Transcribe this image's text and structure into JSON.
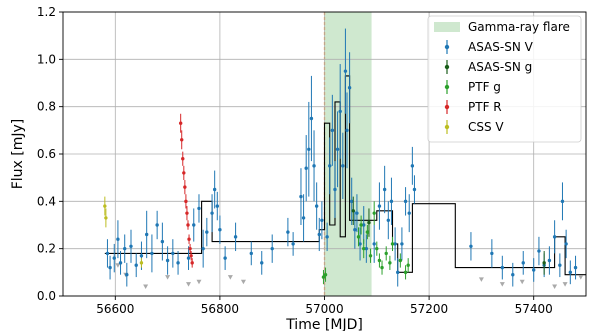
{
  "chart_data": {
    "type": "scatter",
    "xlabel": "Time [MJD]",
    "ylabel": "Flux [mJy]",
    "xlim": [
      56500,
      57500
    ],
    "ylim": [
      0.0,
      1.2
    ],
    "xticks": [
      56600,
      56800,
      57000,
      57200,
      57400
    ],
    "xtick_labels": [
      "56600",
      "56800",
      "57000",
      "57200",
      "57400"
    ],
    "yticks": [
      0.0,
      0.2,
      0.4,
      0.6,
      0.8,
      1.0,
      1.2
    ],
    "ytick_labels": [
      "0.0",
      "0.2",
      "0.4",
      "0.6",
      "0.8",
      "1.0",
      "1.2"
    ],
    "grid": true,
    "legend_position": "top-right",
    "flare_span": {
      "name": "Gamma-ray flare",
      "x": [
        57000,
        57090
      ],
      "color": "#cfe8cf"
    },
    "flare_line_x": 57000,
    "legend": [
      {
        "name": "Gamma-ray flare",
        "kind": "patch",
        "color": "#cfe8cf"
      },
      {
        "name": "ASAS-SN V",
        "kind": "errorbar",
        "color": "#1f77b4"
      },
      {
        "name": "ASAS-SN g",
        "kind": "errorbar",
        "color": "#1a5e1a"
      },
      {
        "name": "PTF g",
        "kind": "errorbar",
        "color": "#2ca02c"
      },
      {
        "name": "PTF R",
        "kind": "errorbar",
        "color": "#d62728"
      },
      {
        "name": "CSS V",
        "kind": "errorbar",
        "color": "#bcbd22"
      }
    ],
    "series": [
      {
        "name": "ASAS-SN V",
        "color": "#1f77b4",
        "points": [
          [
            56585,
            0.18,
            0.06
          ],
          [
            56590,
            0.12,
            0.05
          ],
          [
            56598,
            0.16,
            0.06
          ],
          [
            56605,
            0.24,
            0.08
          ],
          [
            56610,
            0.14,
            0.05
          ],
          [
            56618,
            0.2,
            0.06
          ],
          [
            56622,
            0.09,
            0.05
          ],
          [
            56630,
            0.21,
            0.07
          ],
          [
            56640,
            0.13,
            0.05
          ],
          [
            56650,
            0.17,
            0.06
          ],
          [
            56660,
            0.26,
            0.1
          ],
          [
            56670,
            0.18,
            0.08
          ],
          [
            56680,
            0.3,
            0.06
          ],
          [
            56690,
            0.23,
            0.08
          ],
          [
            56700,
            0.15,
            0.06
          ],
          [
            56710,
            0.18,
            0.06
          ],
          [
            56720,
            0.14,
            0.05
          ],
          [
            56740,
            0.16,
            0.05
          ],
          [
            56750,
            0.3,
            0.07
          ],
          [
            56760,
            0.37,
            0.06
          ],
          [
            56768,
            0.2,
            0.08
          ],
          [
            56775,
            0.27,
            0.06
          ],
          [
            56785,
            0.35,
            0.08
          ],
          [
            56790,
            0.45,
            0.08
          ],
          [
            56795,
            0.38,
            0.06
          ],
          [
            56800,
            0.28,
            0.06
          ],
          [
            56810,
            0.16,
            0.05
          ],
          [
            56830,
            0.25,
            0.06
          ],
          [
            56860,
            0.18,
            0.05
          ],
          [
            56880,
            0.14,
            0.05
          ],
          [
            56900,
            0.2,
            0.06
          ],
          [
            56930,
            0.27,
            0.06
          ],
          [
            56940,
            0.22,
            0.05
          ],
          [
            56955,
            0.42,
            0.12
          ],
          [
            56960,
            0.33,
            0.1
          ],
          [
            56965,
            0.54,
            0.14
          ],
          [
            56970,
            0.62,
            0.2
          ],
          [
            56975,
            0.75,
            0.18
          ],
          [
            56980,
            0.55,
            0.15
          ],
          [
            56985,
            0.38,
            0.1
          ],
          [
            56990,
            0.26,
            0.07
          ],
          [
            56995,
            0.32,
            0.08
          ],
          [
            57005,
            0.25,
            0.06
          ],
          [
            57010,
            0.55,
            0.12
          ],
          [
            57015,
            0.7,
            0.15
          ],
          [
            57020,
            0.45,
            0.12
          ],
          [
            57025,
            0.62,
            0.16
          ],
          [
            57030,
            0.78,
            0.2
          ],
          [
            57035,
            0.55,
            0.14
          ],
          [
            57040,
            0.95,
            0.18
          ],
          [
            57043,
            0.7,
            0.16
          ],
          [
            57048,
            0.88,
            0.15
          ],
          [
            57052,
            0.4,
            0.1
          ],
          [
            57058,
            0.28,
            0.08
          ],
          [
            57062,
            0.35,
            0.08
          ],
          [
            57068,
            0.22,
            0.07
          ],
          [
            57075,
            0.3,
            0.08
          ],
          [
            57080,
            0.2,
            0.06
          ],
          [
            57095,
            0.22,
            0.08
          ],
          [
            57105,
            0.38,
            0.1
          ],
          [
            57115,
            0.45,
            0.1
          ],
          [
            57122,
            0.32,
            0.08
          ],
          [
            57128,
            0.4,
            0.1
          ],
          [
            57135,
            0.22,
            0.07
          ],
          [
            57140,
            0.1,
            0.06
          ],
          [
            57148,
            0.22,
            0.07
          ],
          [
            57155,
            0.4,
            0.06
          ],
          [
            57162,
            0.35,
            0.08
          ],
          [
            57168,
            0.55,
            0.08
          ],
          [
            57172,
            0.45,
            0.06
          ],
          [
            57280,
            0.21,
            0.06
          ],
          [
            57320,
            0.18,
            0.06
          ],
          [
            57340,
            0.12,
            0.05
          ],
          [
            57360,
            0.09,
            0.05
          ],
          [
            57380,
            0.14,
            0.05
          ],
          [
            57400,
            0.11,
            0.05
          ],
          [
            57410,
            0.19,
            0.06
          ],
          [
            57420,
            0.13,
            0.05
          ],
          [
            57430,
            0.15,
            0.06
          ],
          [
            57440,
            0.25,
            0.07
          ],
          [
            57450,
            0.13,
            0.05
          ],
          [
            57455,
            0.4,
            0.08
          ],
          [
            57462,
            0.22,
            0.06
          ],
          [
            57470,
            0.1,
            0.05
          ],
          [
            57480,
            0.12,
            0.05
          ]
        ]
      },
      {
        "name": "ASAS-SN g",
        "color": "#1a5e1a",
        "points": [
          [
            57055,
            0.36,
            0.06
          ],
          [
            57085,
            0.31,
            0.06
          ],
          [
            57420,
            0.14,
            0.05
          ]
        ]
      },
      {
        "name": "PTF g",
        "color": "#2ca02c",
        "points": [
          [
            56998,
            0.08,
            0.03
          ],
          [
            57002,
            0.09,
            0.03
          ],
          [
            57065,
            0.25,
            0.04
          ],
          [
            57070,
            0.3,
            0.04
          ],
          [
            57075,
            0.2,
            0.04
          ],
          [
            57082,
            0.27,
            0.03
          ],
          [
            57088,
            0.17,
            0.03
          ],
          [
            57095,
            0.35,
            0.05
          ],
          [
            57100,
            0.2,
            0.03
          ],
          [
            57105,
            0.15,
            0.03
          ],
          [
            57110,
            0.12,
            0.03
          ],
          [
            57118,
            0.18,
            0.03
          ],
          [
            57125,
            0.14,
            0.03
          ],
          [
            57130,
            0.22,
            0.03
          ],
          [
            57145,
            0.15,
            0.03
          ],
          [
            57155,
            0.1,
            0.03
          ],
          [
            57160,
            0.13,
            0.03
          ]
        ]
      },
      {
        "name": "PTF R",
        "color": "#d62728",
        "points": [
          [
            56725,
            0.73,
            0.04
          ],
          [
            56727,
            0.66,
            0.04
          ],
          [
            56729,
            0.58,
            0.03
          ],
          [
            56731,
            0.52,
            0.03
          ],
          [
            56733,
            0.46,
            0.03
          ],
          [
            56735,
            0.4,
            0.03
          ],
          [
            56737,
            0.35,
            0.03
          ],
          [
            56739,
            0.3,
            0.02
          ],
          [
            56741,
            0.24,
            0.02
          ],
          [
            56743,
            0.2,
            0.02
          ],
          [
            56745,
            0.17,
            0.02
          ],
          [
            56747,
            0.14,
            0.02
          ]
        ]
      },
      {
        "name": "CSS V",
        "color": "#bcbd22",
        "points": [
          [
            56580,
            0.38,
            0.04
          ],
          [
            56582,
            0.33,
            0.04
          ],
          [
            56650,
            0.14,
            0.02
          ]
        ]
      }
    ],
    "upper_limits": {
      "color": "#aaaaaa",
      "points": [
        [
          56605,
          0.13
        ],
        [
          56620,
          0.09
        ],
        [
          56658,
          0.04
        ],
        [
          56700,
          0.08
        ],
        [
          56740,
          0.05
        ],
        [
          56760,
          0.06
        ],
        [
          56820,
          0.08
        ],
        [
          56845,
          0.06
        ],
        [
          57300,
          0.07
        ],
        [
          57340,
          0.05
        ],
        [
          57378,
          0.06
        ],
        [
          57440,
          0.04
        ],
        [
          57460,
          0.05
        ],
        [
          57490,
          0.08
        ]
      ]
    },
    "step_model": {
      "name": "",
      "color": "#000000",
      "points": [
        [
          56580,
          0.18
        ],
        [
          56765,
          0.18
        ],
        [
          56765,
          0.4
        ],
        [
          56785,
          0.4
        ],
        [
          56785,
          0.23
        ],
        [
          56990,
          0.23
        ],
        [
          56990,
          0.28
        ],
        [
          57000,
          0.28
        ],
        [
          57000,
          0.73
        ],
        [
          57010,
          0.73
        ],
        [
          57010,
          0.3
        ],
        [
          57020,
          0.3
        ],
        [
          57020,
          0.82
        ],
        [
          57030,
          0.82
        ],
        [
          57030,
          0.25
        ],
        [
          57040,
          0.25
        ],
        [
          57040,
          0.93
        ],
        [
          57048,
          0.93
        ],
        [
          57048,
          0.32
        ],
        [
          57100,
          0.32
        ],
        [
          57100,
          0.36
        ],
        [
          57130,
          0.36
        ],
        [
          57130,
          0.22
        ],
        [
          57140,
          0.22
        ],
        [
          57140,
          0.1
        ],
        [
          57168,
          0.1
        ],
        [
          57168,
          0.39
        ],
        [
          57250,
          0.39
        ],
        [
          57250,
          0.12
        ],
        [
          57440,
          0.12
        ],
        [
          57440,
          0.25
        ],
        [
          57460,
          0.25
        ],
        [
          57460,
          0.09
        ],
        [
          57500,
          0.09
        ]
      ]
    }
  }
}
